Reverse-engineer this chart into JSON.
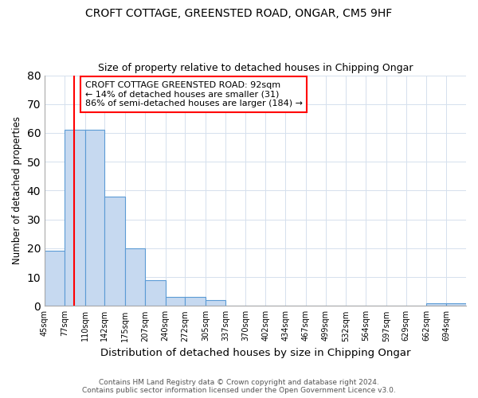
{
  "title1": "CROFT COTTAGE, GREENSTED ROAD, ONGAR, CM5 9HF",
  "title2": "Size of property relative to detached houses in Chipping Ongar",
  "xlabel": "Distribution of detached houses by size in Chipping Ongar",
  "ylabel": "Number of detached properties",
  "categories": [
    "45sqm",
    "77sqm",
    "110sqm",
    "142sqm",
    "175sqm",
    "207sqm",
    "240sqm",
    "272sqm",
    "305sqm",
    "337sqm",
    "370sqm",
    "402sqm",
    "434sqm",
    "467sqm",
    "499sqm",
    "532sqm",
    "564sqm",
    "597sqm",
    "629sqm",
    "662sqm",
    "694sqm"
  ],
  "bin_edges": [
    45,
    77,
    110,
    142,
    175,
    207,
    240,
    272,
    305,
    337,
    370,
    402,
    434,
    467,
    499,
    532,
    564,
    597,
    629,
    662,
    694,
    726
  ],
  "values": [
    19,
    61,
    61,
    38,
    20,
    9,
    3,
    3,
    2,
    0,
    0,
    0,
    0,
    0,
    0,
    0,
    0,
    0,
    0,
    1,
    1
  ],
  "bar_color": "#c6d9f0",
  "bar_edge_color": "#5b9bd5",
  "red_line_value": 92,
  "annotation_title": "CROFT COTTAGE GREENSTED ROAD: 92sqm",
  "annotation_line1": "← 14% of detached houses are smaller (31)",
  "annotation_line2": "86% of semi-detached houses are larger (184) →",
  "ylim": [
    0,
    80
  ],
  "yticks": [
    0,
    10,
    20,
    30,
    40,
    50,
    60,
    70,
    80
  ],
  "footer1": "Contains HM Land Registry data © Crown copyright and database right 2024.",
  "footer2": "Contains public sector information licensed under the Open Government Licence v3.0.",
  "background_color": "#ffffff",
  "grid_color": "#d5e0ed"
}
